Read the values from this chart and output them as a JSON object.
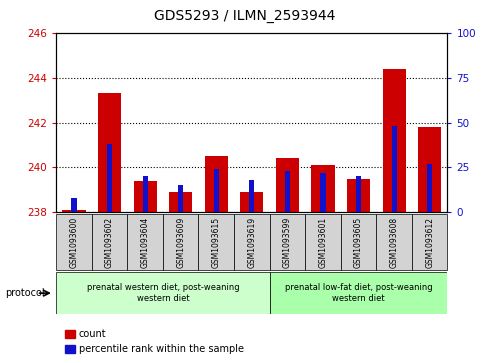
{
  "title": "GDS5293 / ILMN_2593944",
  "samples": [
    "GSM1093600",
    "GSM1093602",
    "GSM1093604",
    "GSM1093609",
    "GSM1093615",
    "GSM1093619",
    "GSM1093599",
    "GSM1093601",
    "GSM1093605",
    "GSM1093608",
    "GSM1093612"
  ],
  "count_values": [
    238.1,
    243.3,
    239.4,
    238.9,
    240.5,
    238.9,
    240.4,
    240.1,
    239.5,
    244.4,
    241.8
  ],
  "percentile_values": [
    8,
    38,
    20,
    15,
    24,
    18,
    23,
    22,
    20,
    48,
    27
  ],
  "ylim_left": [
    238,
    246
  ],
  "ylim_right": [
    0,
    100
  ],
  "yticks_left": [
    238,
    240,
    242,
    244,
    246
  ],
  "yticks_right": [
    0,
    25,
    50,
    75,
    100
  ],
  "bar_color_red": "#cc0000",
  "bar_color_blue": "#1111cc",
  "background_plot": "#ffffff",
  "group1_label": "prenatal western diet, post-weaning\nwestern diet",
  "group2_label": "prenatal low-fat diet, post-weaning\nwestern diet",
  "group1_indices": [
    0,
    1,
    2,
    3,
    4,
    5
  ],
  "group2_indices": [
    6,
    7,
    8,
    9,
    10
  ],
  "group1_color": "#ccffcc",
  "group2_color": "#aaffaa",
  "legend_count": "count",
  "legend_percentile": "percentile rank within the sample",
  "protocol_label": "protocol",
  "cell_bg_color": "#d3d3d3"
}
